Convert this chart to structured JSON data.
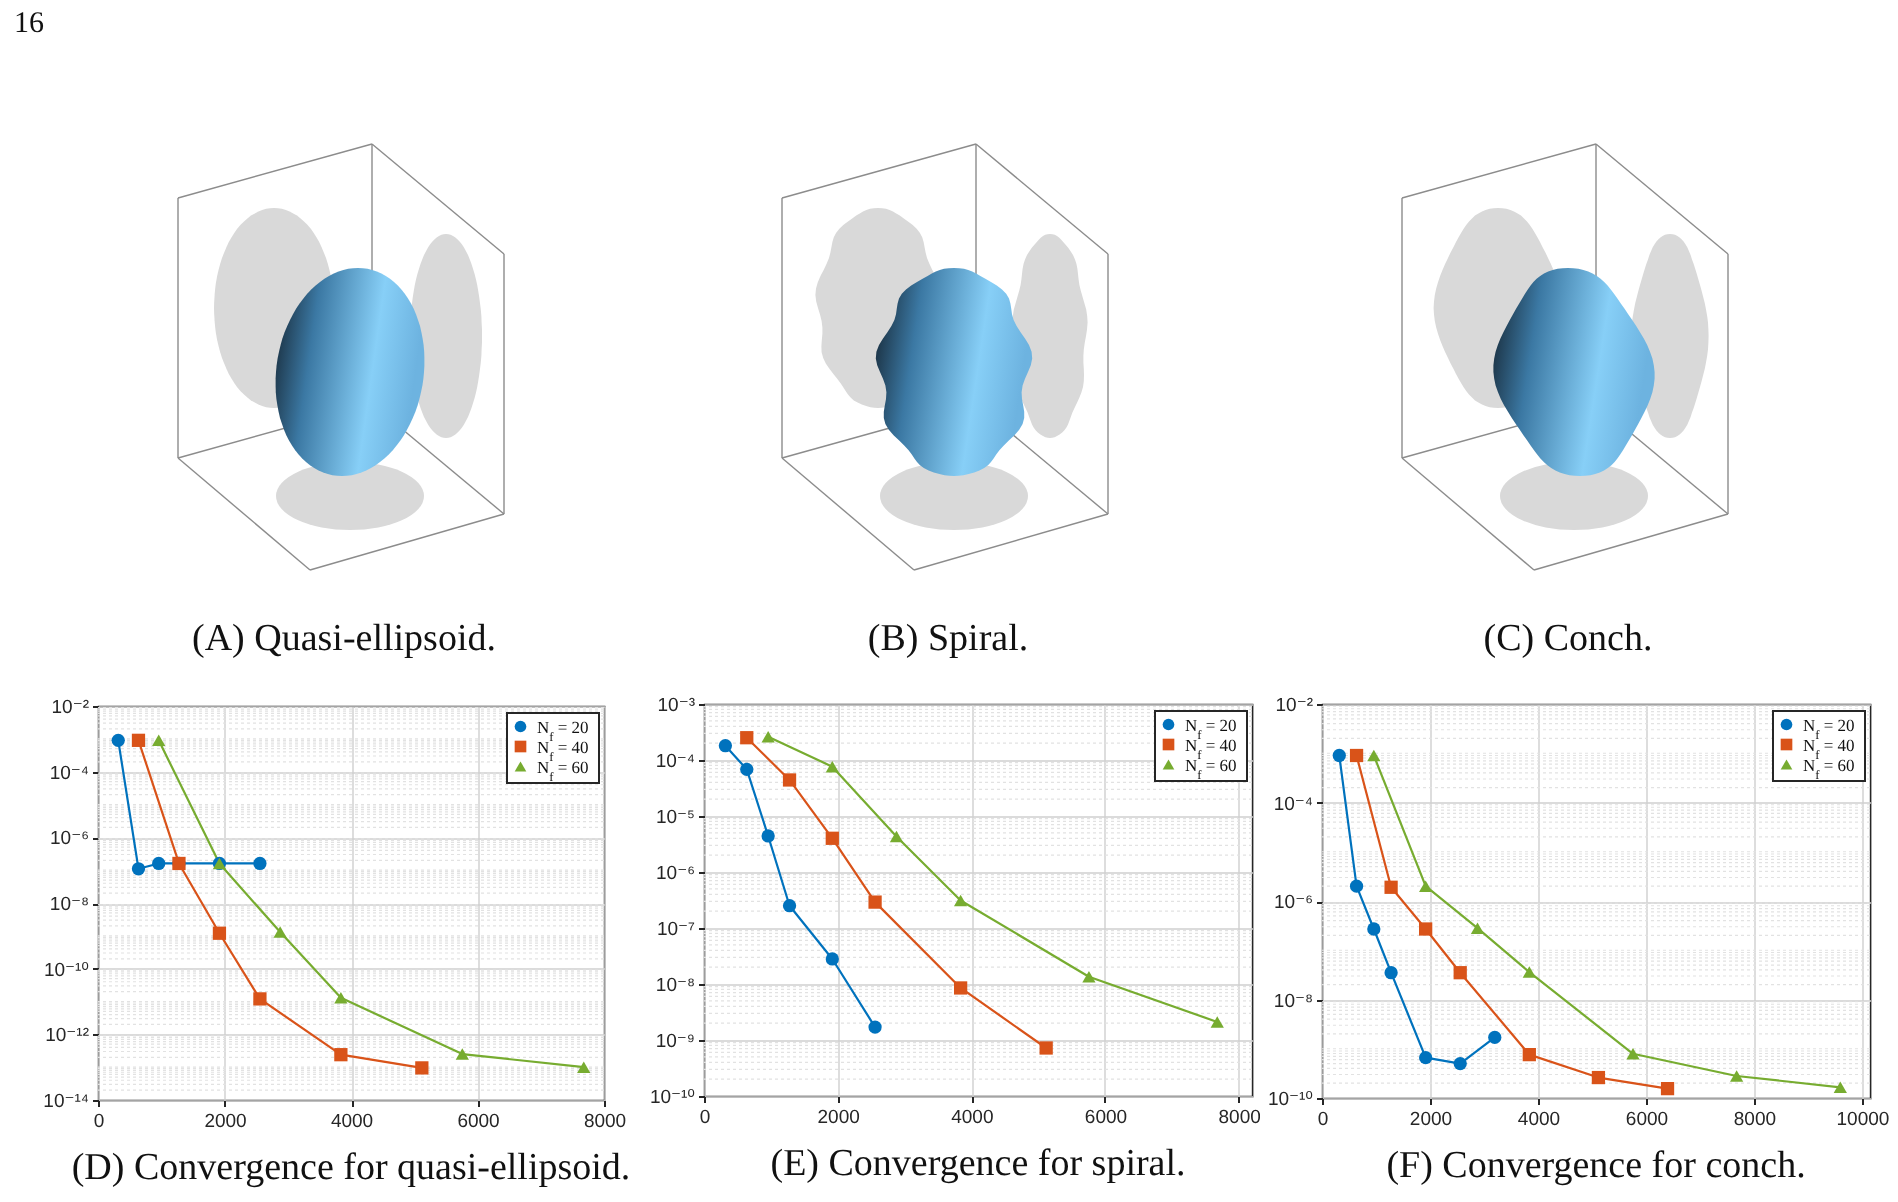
{
  "chart_data": [
    {
      "type": "other",
      "title": "(A) Quasi-ellipsoid.",
      "annotations": [
        "16"
      ]
    },
    {
      "type": "other",
      "title": "(B) Spiral."
    },
    {
      "type": "other",
      "title": "(C) Conch."
    },
    {
      "type": "line",
      "title": "(D) Convergence for quasi-ellipsoid.",
      "xlim": [
        0,
        8000
      ],
      "xticks": [
        0,
        2000,
        4000,
        6000,
        8000
      ],
      "log": "y",
      "ylim": [
        1e-14,
        0.01
      ],
      "yticks": [
        {
          "value": 1e-14,
          "label": "10⁻¹⁴"
        },
        {
          "value": 1e-12,
          "label": "10⁻¹²"
        },
        {
          "value": 1e-10,
          "label": "10⁻¹⁰"
        },
        {
          "value": 1e-08,
          "label": "10⁻⁸"
        },
        {
          "value": 1e-06,
          "label": "10⁻⁶"
        },
        {
          "value": 0.0001,
          "label": "10⁻⁴"
        },
        {
          "value": 0.01,
          "label": "10⁻²"
        }
      ],
      "grid": true,
      "legend": "top right",
      "series": [
        {
          "name": "N$_{f}$ = 20",
          "color": "#0072bd",
          "marker": "circle",
          "x": [
            320,
            640,
            960,
            1280,
            1920,
            2560
          ],
          "values": [
            0.0009,
            1.1e-07,
            1.6e-07,
            1.6e-07,
            1.6e-07,
            1.6e-07
          ]
        },
        {
          "name": "N$_{f}$ = 40",
          "color": "#d95319",
          "marker": "square",
          "x": [
            640,
            1280,
            1920,
            2560,
            3840,
            5120
          ],
          "values": [
            0.0009,
            1.6e-07,
            1.2e-09,
            1.2e-11,
            2.4e-13,
            9.5e-14
          ]
        },
        {
          "name": "N$_{f}$ = 60",
          "color": "#77ac30",
          "marker": "triangle",
          "x": [
            960,
            1920,
            2880,
            3840,
            5760,
            7680
          ],
          "values": [
            0.0009,
            1.6e-07,
            1.3e-09,
            1.3e-11,
            2.5e-13,
            1e-13
          ]
        }
      ]
    },
    {
      "type": "line",
      "title": "(E) Convergence for spiral.",
      "xlim": [
        0,
        8200
      ],
      "xticks": [
        0,
        2000,
        4000,
        6000,
        8000
      ],
      "log": "y",
      "ylim": [
        1e-10,
        0.001
      ],
      "yticks": [
        {
          "value": 1e-10,
          "label": "10⁻¹⁰"
        },
        {
          "value": 1e-09,
          "label": "10⁻⁹"
        },
        {
          "value": 1e-08,
          "label": "10⁻⁸"
        },
        {
          "value": 1e-07,
          "label": "10⁻⁷"
        },
        {
          "value": 1e-06,
          "label": "10⁻⁶"
        },
        {
          "value": 1e-05,
          "label": "10⁻⁵"
        },
        {
          "value": 0.0001,
          "label": "10⁻⁴"
        },
        {
          "value": 0.001,
          "label": "10⁻³"
        }
      ],
      "grid": true,
      "legend": "top right",
      "series": [
        {
          "name": "N$_{f}$ = 20",
          "color": "#0072bd",
          "marker": "circle",
          "x": [
            320,
            640,
            960,
            1280,
            1920,
            2560
          ],
          "values": [
            0.00018,
            6.8e-05,
            4.4e-06,
            2.5e-07,
            2.8e-08,
            1.7e-09
          ]
        },
        {
          "name": "N$_{f}$ = 40",
          "color": "#d95319",
          "marker": "square",
          "x": [
            640,
            1280,
            1920,
            2560,
            3840,
            5120
          ],
          "values": [
            0.00025,
            4.4e-05,
            4e-06,
            2.9e-07,
            8.5e-09,
            7.2e-10
          ]
        },
        {
          "name": "N$_{f}$ = 60",
          "color": "#77ac30",
          "marker": "triangle",
          "x": [
            960,
            1920,
            2880,
            3840,
            5760,
            7680
          ],
          "values": [
            0.00026,
            7.6e-05,
            4.3e-06,
            3.1e-07,
            1.35e-08,
            2.1e-09
          ]
        }
      ]
    },
    {
      "type": "line",
      "title": "(F) Convergence for conch.",
      "xlim": [
        0,
        10150
      ],
      "xticks": [
        0,
        2000,
        4000,
        6000,
        8000,
        10000
      ],
      "log": "y",
      "ylim": [
        1e-10,
        0.01
      ],
      "yticks": [
        {
          "value": 1e-10,
          "label": "10⁻¹⁰"
        },
        {
          "value": 1e-08,
          "label": "10⁻⁸"
        },
        {
          "value": 1e-06,
          "label": "10⁻⁶"
        },
        {
          "value": 0.0001,
          "label": "10⁻⁴"
        },
        {
          "value": 0.01,
          "label": "10⁻²"
        }
      ],
      "grid": true,
      "legend": "top right",
      "series": [
        {
          "name": "N$_{f}$ = 20",
          "color": "#0072bd",
          "marker": "circle",
          "x": [
            320,
            640,
            960,
            1280,
            1920,
            2560,
            3200
          ],
          "values": [
            0.0009,
            2e-06,
            2.7e-07,
            3.5e-08,
            6.6e-10,
            5e-10,
            1.7e-09
          ]
        },
        {
          "name": "N$_{f}$ = 40",
          "color": "#d95319",
          "marker": "square",
          "x": [
            640,
            1280,
            1920,
            2560,
            3840,
            5120,
            6400
          ],
          "values": [
            0.0009,
            1.9e-06,
            2.7e-07,
            3.5e-08,
            7.6e-10,
            2.6e-10,
            1.55e-10
          ]
        },
        {
          "name": "N$_{f}$ = 60",
          "color": "#77ac30",
          "marker": "triangle",
          "x": [
            960,
            1920,
            2880,
            3840,
            5760,
            7680,
            9600
          ],
          "values": [
            0.0009,
            2e-06,
            2.8e-07,
            3.6e-08,
            7.9e-10,
            2.8e-10,
            1.65e-10
          ]
        }
      ]
    }
  ]
}
